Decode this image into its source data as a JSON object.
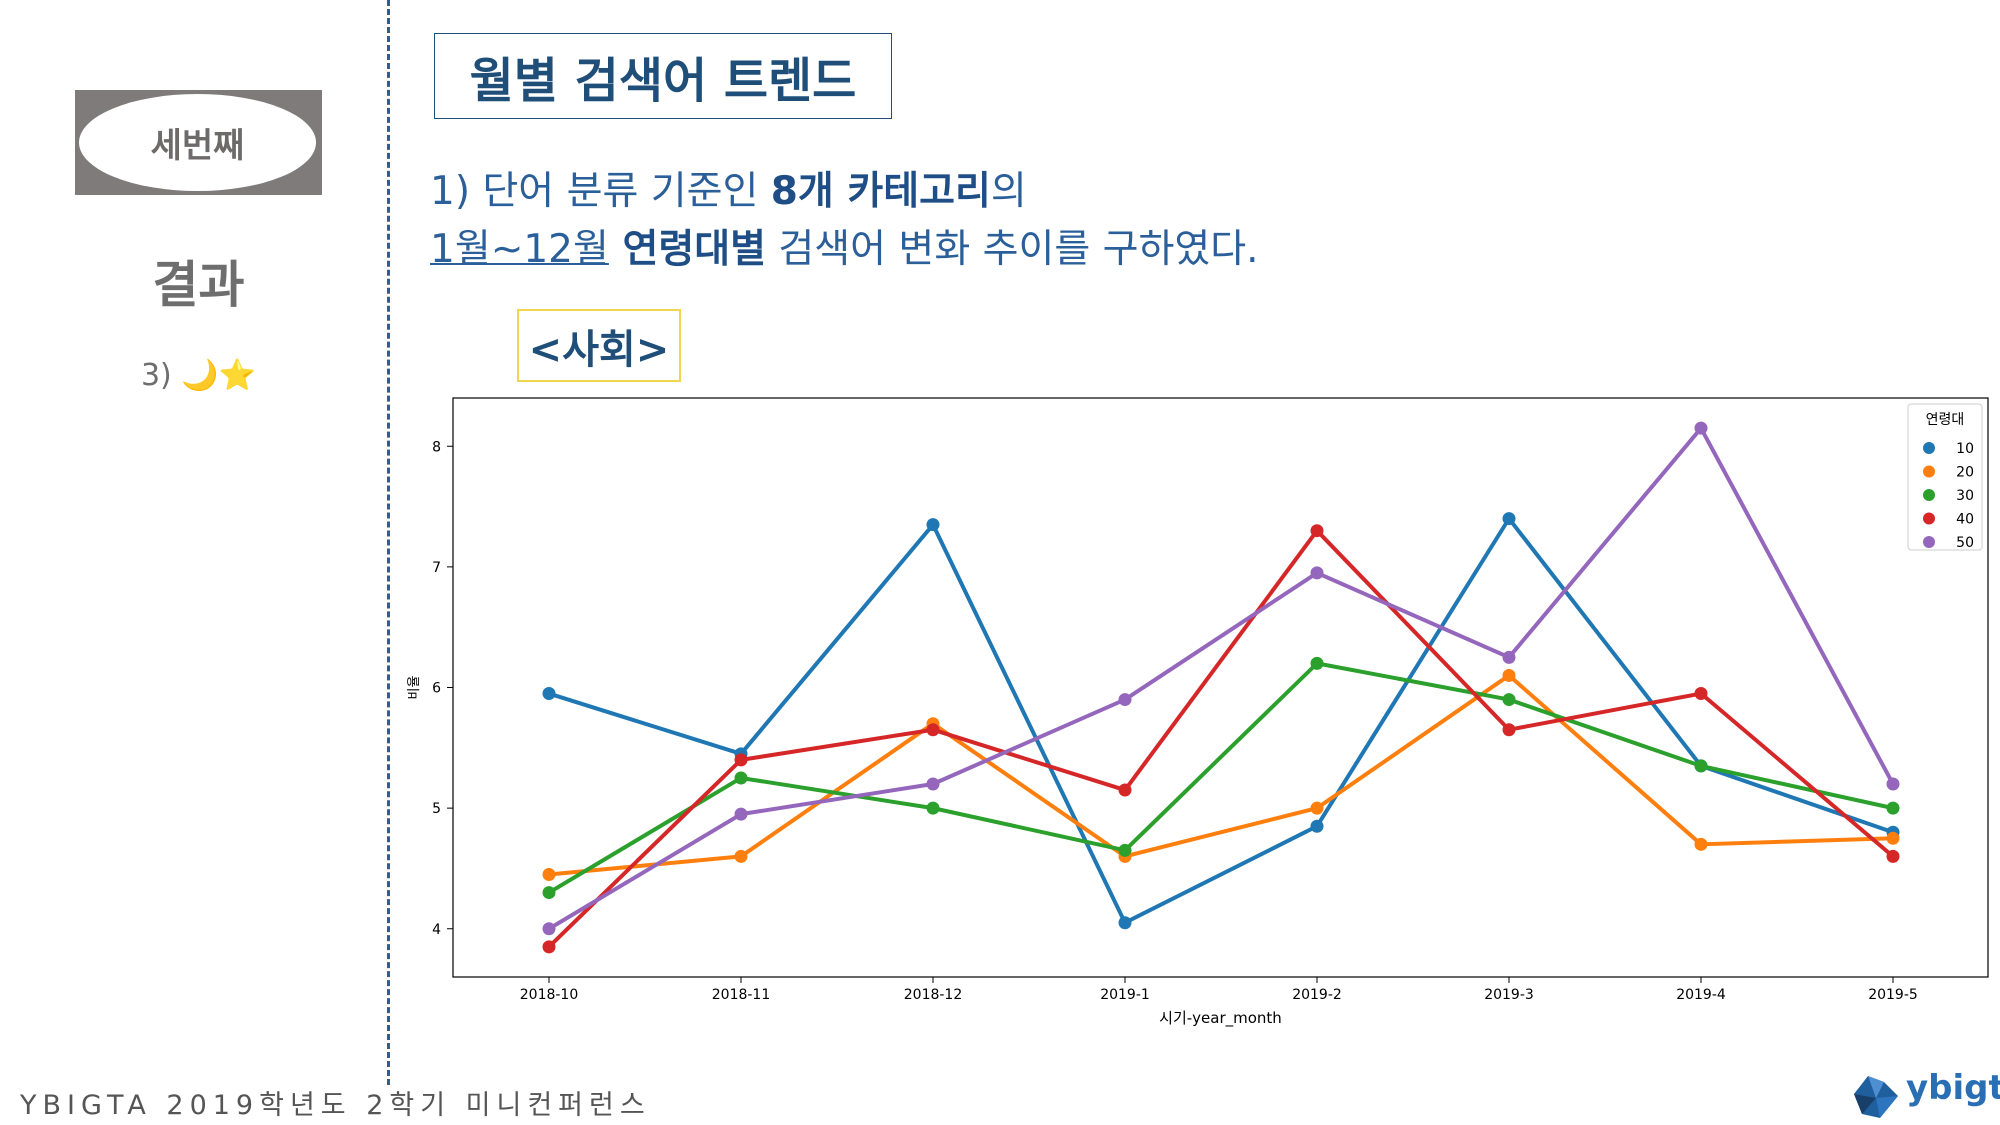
{
  "sidebar": {
    "section_label": "세번째",
    "result_title": "결과",
    "result_sub": "3) 🌙⭐"
  },
  "header": {
    "title": "월별 검색어 트렌드",
    "line1_a": "1) 단어 분류 기준인 ",
    "line1_b": "8개 카테고리",
    "line1_c": "의",
    "line2_a": "1월~12월",
    "line2_b": " 연령대별",
    "line2_c": " 검색어 변화 추이를 구하였다.",
    "category": "<사회>"
  },
  "footer": {
    "text": "YBIGTA 2019학년도 2학기 미니컨퍼런스",
    "brand": "ybigta"
  },
  "colors": {
    "accent": "#1f4e79",
    "divider": "#2e5f94",
    "category_border": "#f2d54e"
  },
  "chart_data": {
    "type": "line",
    "xlabel": "시기-year_month",
    "ylabel": "비율",
    "categories": [
      "2018-10",
      "2018-11",
      "2018-12",
      "2019-1",
      "2019-2",
      "2019-3",
      "2019-4",
      "2019-5"
    ],
    "ylim": [
      3.6,
      8.4
    ],
    "yticks": [
      4,
      5,
      6,
      7,
      8
    ],
    "legend_title": "연령대",
    "legend_position": "top-right",
    "grid": false,
    "series": [
      {
        "name": "10",
        "color": "#1f77b4",
        "values": [
          5.95,
          5.45,
          7.35,
          4.05,
          4.85,
          7.4,
          5.35,
          4.8
        ]
      },
      {
        "name": "20",
        "color": "#ff7f0e",
        "values": [
          4.45,
          4.6,
          5.7,
          4.6,
          5.0,
          6.1,
          4.7,
          4.75
        ]
      },
      {
        "name": "30",
        "color": "#2ca02c",
        "values": [
          4.3,
          5.25,
          5.0,
          4.65,
          6.2,
          5.9,
          5.35,
          5.0
        ]
      },
      {
        "name": "40",
        "color": "#d62728",
        "values": [
          3.85,
          5.4,
          5.65,
          5.15,
          7.3,
          5.65,
          5.95,
          4.6
        ]
      },
      {
        "name": "50",
        "color": "#9467bd",
        "values": [
          4.0,
          4.95,
          5.2,
          5.9,
          6.95,
          6.25,
          8.15,
          5.2
        ]
      }
    ]
  }
}
